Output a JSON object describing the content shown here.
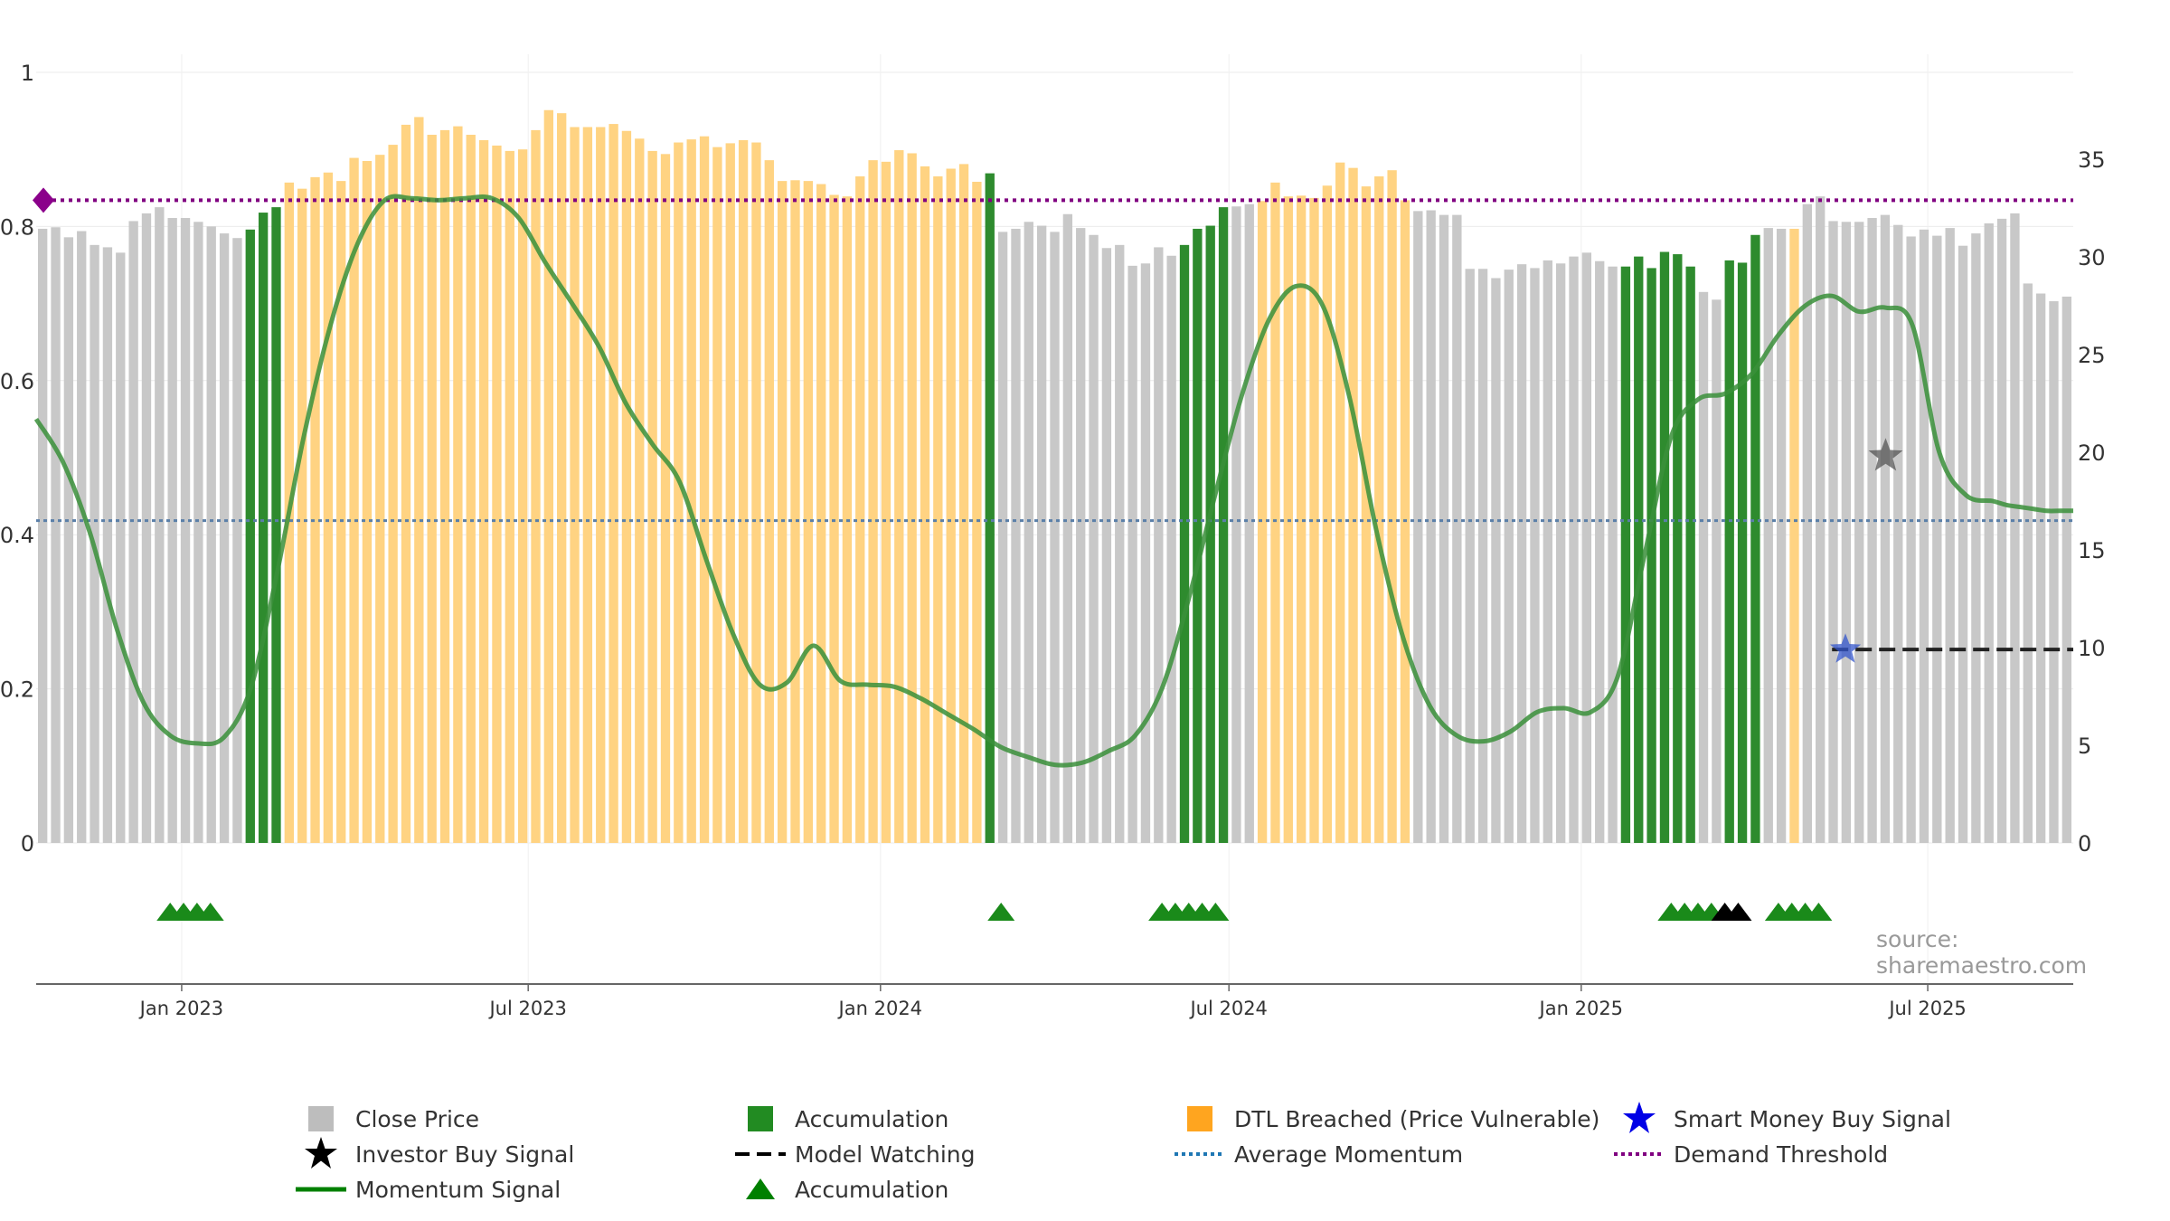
{
  "chart_data": {
    "type": "bar",
    "title": "",
    "source": "source: sharemaestro.com",
    "left_axis": {
      "ylim": [
        0,
        1
      ],
      "ticks": [
        0,
        0.2,
        0.4,
        0.6,
        0.8,
        1
      ],
      "tick_labels": [
        "0",
        "0.2",
        "0.4",
        "0.6",
        "0.8",
        "1"
      ]
    },
    "right_axis": {
      "ylim": [
        0,
        35
      ],
      "ticks": [
        0,
        5,
        10,
        15,
        20,
        25,
        30,
        35
      ],
      "tick_labels": [
        "0",
        "5",
        "10",
        "15",
        "20",
        "25",
        "30",
        "35"
      ]
    },
    "x_axis": {
      "start": "2022-10-17",
      "end": "2025-09-15",
      "ticks": [
        "2023-01-01",
        "2023-07-01",
        "2024-01-01",
        "2024-07-01",
        "2025-01-01",
        "2025-07-01"
      ],
      "tick_labels": [
        "Jan 2023",
        "Jul 2023",
        "Jan 2024",
        "Jul 2024",
        "Jan 2025",
        "Jul 2025"
      ]
    },
    "bar_states_legend": {
      "gray": "Close Price",
      "green": "Accumulation",
      "orange": "DTL Breached (Price Vulnerable)"
    },
    "close_price": [
      0.797,
      0.799,
      0.786,
      0.794,
      0.776,
      0.773,
      0.766,
      0.807,
      0.817,
      0.825,
      0.811,
      0.811,
      0.806,
      0.8,
      0.791,
      0.785,
      0.796,
      0.818,
      0.825,
      0.857,
      0.849,
      0.864,
      0.87,
      0.859,
      0.889,
      0.885,
      0.893,
      0.906,
      0.932,
      0.942,
      0.919,
      0.925,
      0.93,
      0.919,
      0.912,
      0.905,
      0.898,
      0.9,
      0.925,
      0.951,
      0.947,
      0.929,
      0.929,
      0.929,
      0.933,
      0.924,
      0.914,
      0.898,
      0.894,
      0.909,
      0.913,
      0.917,
      0.903,
      0.908,
      0.912,
      0.909,
      0.886,
      0.859,
      0.86,
      0.859,
      0.855,
      0.841,
      0.839,
      0.865,
      0.886,
      0.884,
      0.899,
      0.895,
      0.878,
      0.865,
      0.875,
      0.881,
      0.858,
      0.869,
      0.793,
      0.797,
      0.806,
      0.801,
      0.793,
      0.816,
      0.798,
      0.789,
      0.772,
      0.776,
      0.749,
      0.752,
      0.773,
      0.762,
      0.776,
      0.797,
      0.801,
      0.825,
      0.826,
      0.829,
      0.833,
      0.857,
      0.839,
      0.84,
      0.837,
      0.853,
      0.883,
      0.876,
      0.852,
      0.865,
      0.873,
      0.834,
      0.82,
      0.821,
      0.815,
      0.815,
      0.745,
      0.745,
      0.733,
      0.744,
      0.751,
      0.746,
      0.756,
      0.752,
      0.761,
      0.766,
      0.755,
      0.748,
      0.748,
      0.761,
      0.746,
      0.767,
      0.764,
      0.748,
      0.715,
      0.705,
      0.756,
      0.753,
      0.789,
      0.798,
      0.797,
      0.797,
      0.829,
      0.839,
      0.807,
      0.806,
      0.806,
      0.811,
      0.815,
      0.802,
      0.787,
      0.796,
      0.788,
      0.798,
      0.775,
      0.791,
      0.804,
      0.81,
      0.817,
      0.726,
      0.713,
      0.703,
      0.709
    ],
    "bar_state": [
      "gray",
      "gray",
      "gray",
      "gray",
      "gray",
      "gray",
      "gray",
      "gray",
      "gray",
      "gray",
      "gray",
      "gray",
      "gray",
      "gray",
      "gray",
      "gray",
      "green",
      "green",
      "green",
      "orange",
      "orange",
      "orange",
      "orange",
      "orange",
      "orange",
      "orange",
      "orange",
      "orange",
      "orange",
      "orange",
      "orange",
      "orange",
      "orange",
      "orange",
      "orange",
      "orange",
      "orange",
      "orange",
      "orange",
      "orange",
      "orange",
      "orange",
      "orange",
      "orange",
      "orange",
      "orange",
      "orange",
      "orange",
      "orange",
      "orange",
      "orange",
      "orange",
      "orange",
      "orange",
      "orange",
      "orange",
      "orange",
      "orange",
      "orange",
      "orange",
      "orange",
      "orange",
      "orange",
      "orange",
      "orange",
      "orange",
      "orange",
      "orange",
      "orange",
      "orange",
      "orange",
      "orange",
      "orange",
      "green",
      "gray",
      "gray",
      "gray",
      "gray",
      "gray",
      "gray",
      "gray",
      "gray",
      "gray",
      "gray",
      "gray",
      "gray",
      "gray",
      "gray",
      "green",
      "green",
      "green",
      "green",
      "gray",
      "gray",
      "orange",
      "orange",
      "orange",
      "orange",
      "orange",
      "orange",
      "orange",
      "orange",
      "orange",
      "orange",
      "orange",
      "orange",
      "gray",
      "gray",
      "gray",
      "gray",
      "gray",
      "gray",
      "gray",
      "gray",
      "gray",
      "gray",
      "gray",
      "gray",
      "gray",
      "gray",
      "gray",
      "gray",
      "green",
      "green",
      "green",
      "green",
      "green",
      "green",
      "gray",
      "gray",
      "green",
      "green",
      "green",
      "gray",
      "gray",
      "orange",
      "gray",
      "gray",
      "gray",
      "gray",
      "gray",
      "gray",
      "gray",
      "gray",
      "gray",
      "gray",
      "gray",
      "gray",
      "gray",
      "gray",
      "gray",
      "gray",
      "gray",
      "gray",
      "gray",
      "gray"
    ],
    "momentum_signal": {
      "x": [
        "2022-10-17",
        "2022-10-31",
        "2022-11-14",
        "2022-11-28",
        "2022-12-12",
        "2022-12-26",
        "2023-01-09",
        "2023-01-23",
        "2023-02-06",
        "2023-02-20",
        "2023-03-06",
        "2023-03-20",
        "2023-04-03",
        "2023-04-17",
        "2023-05-01",
        "2023-05-15",
        "2023-05-29",
        "2023-06-12",
        "2023-06-26",
        "2023-07-10",
        "2023-07-24",
        "2023-08-07",
        "2023-08-21",
        "2023-09-04",
        "2023-09-18",
        "2023-10-02",
        "2023-10-16",
        "2023-10-30",
        "2023-11-13",
        "2023-11-27",
        "2023-12-11",
        "2023-12-25",
        "2024-01-08",
        "2024-01-22",
        "2024-02-05",
        "2024-02-19",
        "2024-03-04",
        "2024-03-18",
        "2024-04-01",
        "2024-04-15",
        "2024-04-29",
        "2024-05-13",
        "2024-05-27",
        "2024-06-10",
        "2024-06-24",
        "2024-07-08",
        "2024-07-22",
        "2024-08-05",
        "2024-08-19",
        "2024-09-02",
        "2024-09-16",
        "2024-09-30",
        "2024-10-14",
        "2024-10-28",
        "2024-11-11",
        "2024-11-25",
        "2024-12-09",
        "2024-12-23",
        "2025-01-06",
        "2025-01-20",
        "2025-02-03",
        "2025-02-17",
        "2025-03-03",
        "2025-03-17",
        "2025-03-31",
        "2025-04-14",
        "2025-04-28",
        "2025-05-12",
        "2025-05-26",
        "2025-06-09",
        "2025-06-23",
        "2025-07-07",
        "2025-07-21",
        "2025-08-04",
        "2025-08-11",
        "2025-08-18",
        "2025-08-25",
        "2025-09-01",
        "2025-09-08",
        "2025-09-15"
      ],
      "y": [
        21.7,
        19.5,
        15.9,
        11.0,
        7.2,
        5.5,
        5.1,
        5.4,
        7.9,
        13.9,
        20.9,
        26.6,
        30.7,
        32.9,
        33.0,
        32.9,
        33.0,
        33.0,
        32.0,
        29.7,
        27.6,
        25.4,
        22.5,
        20.4,
        18.5,
        14.5,
        10.7,
        8.1,
        8.2,
        10.1,
        8.3,
        8.1,
        8.0,
        7.4,
        6.6,
        5.8,
        4.9,
        4.4,
        4.0,
        4.1,
        4.7,
        5.5,
        7.9,
        12.5,
        17.9,
        23.0,
        26.8,
        28.5,
        27.5,
        22.8,
        16.0,
        10.5,
        7.0,
        5.5,
        5.2,
        5.7,
        6.7,
        6.9,
        6.7,
        8.5,
        14.7,
        20.8,
        22.7,
        23.0,
        24.0,
        26.0,
        27.5,
        28.0,
        27.2,
        27.4,
        26.5,
        20.0,
        17.8,
        17.5,
        17.3,
        17.2,
        17.1,
        17.0,
        17.0,
        17.0
      ]
    },
    "average_momentum": 16.5,
    "demand_threshold": 32.9,
    "model_watching": {
      "x": [
        "2025-05-12",
        "2025-09-15"
      ],
      "y": 9.9
    },
    "investor_buy_signal": {
      "x": "2025-06-09",
      "y": 19.8
    },
    "smart_money_buy_signal": {
      "x": "2025-05-19",
      "y": 9.9
    },
    "accumulation_markers": [
      {
        "x": "2022-12-26",
        "color": "green"
      },
      {
        "x": "2023-01-02",
        "color": "green"
      },
      {
        "x": "2023-01-09",
        "color": "green"
      },
      {
        "x": "2023-01-16",
        "color": "green"
      },
      {
        "x": "2024-03-04",
        "color": "green"
      },
      {
        "x": "2024-05-27",
        "color": "green"
      },
      {
        "x": "2024-06-03",
        "color": "green"
      },
      {
        "x": "2024-06-10",
        "color": "green"
      },
      {
        "x": "2024-06-17",
        "color": "green"
      },
      {
        "x": "2024-06-24",
        "color": "green"
      },
      {
        "x": "2025-02-17",
        "color": "green"
      },
      {
        "x": "2025-02-24",
        "color": "green"
      },
      {
        "x": "2025-03-03",
        "color": "green"
      },
      {
        "x": "2025-03-10",
        "color": "green"
      },
      {
        "x": "2025-03-17",
        "color": "black"
      },
      {
        "x": "2025-03-24",
        "color": "black"
      },
      {
        "x": "2025-04-14",
        "color": "green"
      },
      {
        "x": "2025-04-21",
        "color": "green"
      },
      {
        "x": "2025-04-28",
        "color": "green"
      },
      {
        "x": "2025-05-05",
        "color": "green"
      }
    ],
    "colors": {
      "gray_bar": "#c8c8c8",
      "green_bar": "#2e8b2e",
      "orange_bar": "#ffd382",
      "momentum": "#3a8f3a",
      "average_momentum": "#5a7fa8",
      "demand_threshold": "#800080",
      "model_watching": "#222222",
      "investor_star": "#555555",
      "smart_money_star": "#3355cc",
      "accumulation_triangle": "#1a8a1a",
      "black_triangle": "#000000",
      "diamond": "#8b008b"
    },
    "legend": [
      {
        "label": "Close Price",
        "symbol": "gray-square"
      },
      {
        "label": "Accumulation",
        "symbol": "green-square"
      },
      {
        "label": "DTL Breached (Price Vulnerable)",
        "symbol": "orange-square"
      },
      {
        "label": "Smart Money Buy Signal",
        "symbol": "blue-star"
      },
      {
        "label": "Investor Buy Signal",
        "symbol": "black-star"
      },
      {
        "label": "Model Watching",
        "symbol": "black-dashed-line"
      },
      {
        "label": "Average Momentum",
        "symbol": "blue-dotted-line"
      },
      {
        "label": "Demand Threshold",
        "symbol": "purple-dotted-line"
      },
      {
        "label": "Momentum Signal",
        "symbol": "green-line"
      },
      {
        "label": "Accumulation",
        "symbol": "green-triangle"
      }
    ]
  }
}
